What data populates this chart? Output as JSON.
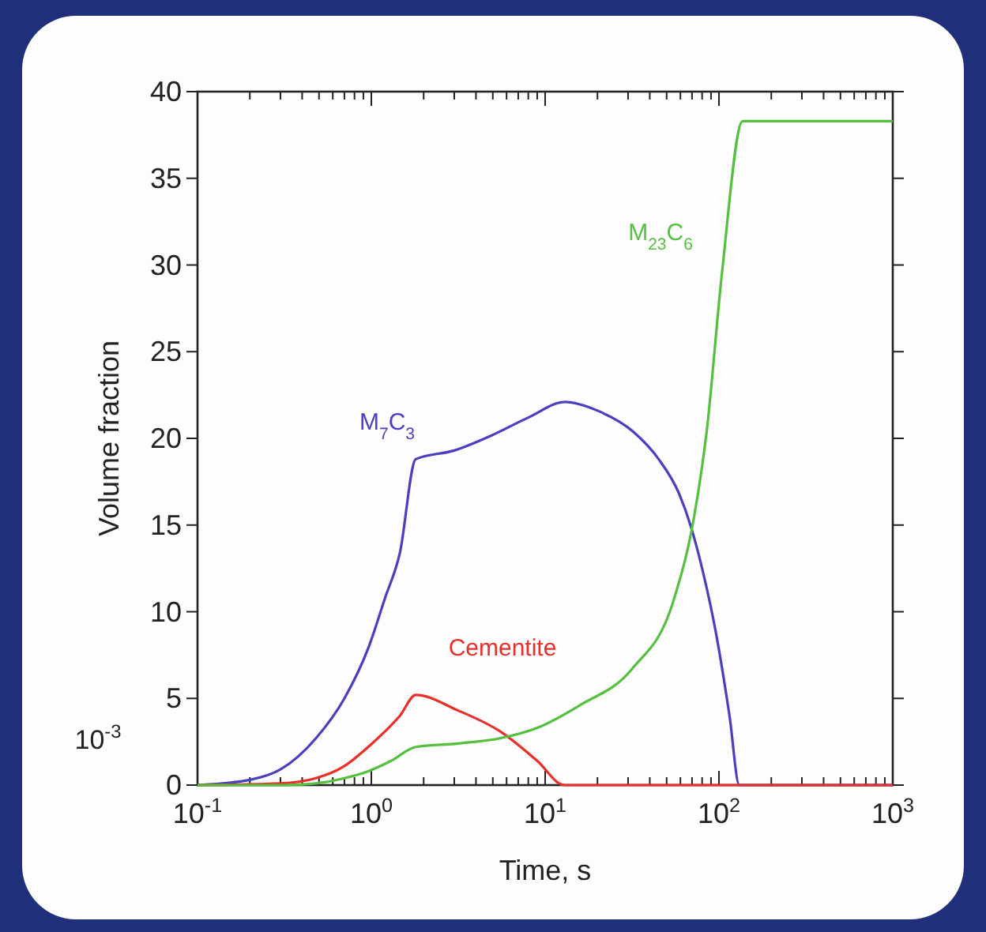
{
  "chart_data": {
    "type": "line",
    "xlabel": "Time, s",
    "ylabel": "Volume fraction",
    "log": "x",
    "xlim": [
      0.1,
      1000
    ],
    "ylim": [
      0,
      40
    ],
    "xticks": [
      {
        "value": 0.1,
        "label": "10$^{-1}$"
      },
      {
        "value": 0.2,
        "label": null
      },
      {
        "value": 0.3,
        "label": null
      },
      {
        "value": 0.4,
        "label": null
      },
      {
        "value": 0.5,
        "label": null
      },
      {
        "value": 0.6,
        "label": null
      },
      {
        "value": 0.7,
        "label": null
      },
      {
        "value": 0.8,
        "label": null
      },
      {
        "value": 0.9,
        "label": null
      },
      {
        "value": 1,
        "label": "10$^{0}$"
      },
      {
        "value": 2,
        "label": null
      },
      {
        "value": 3,
        "label": null
      },
      {
        "value": 4,
        "label": null
      },
      {
        "value": 5,
        "label": null
      },
      {
        "value": 6,
        "label": null
      },
      {
        "value": 7,
        "label": null
      },
      {
        "value": 8,
        "label": null
      },
      {
        "value": 9,
        "label": null
      },
      {
        "value": 10,
        "label": "10$^{1}$"
      },
      {
        "value": 20,
        "label": null
      },
      {
        "value": 30,
        "label": null
      },
      {
        "value": 40,
        "label": null
      },
      {
        "value": 50,
        "label": null
      },
      {
        "value": 60,
        "label": null
      },
      {
        "value": 70,
        "label": null
      },
      {
        "value": 80,
        "label": null
      },
      {
        "value": 90,
        "label": null
      },
      {
        "value": 100,
        "label": "10$^{2}$"
      },
      {
        "value": 200,
        "label": null
      },
      {
        "value": 300,
        "label": null
      },
      {
        "value": 400,
        "label": null
      },
      {
        "value": 500,
        "label": null
      },
      {
        "value": 600,
        "label": null
      },
      {
        "value": 700,
        "label": null
      },
      {
        "value": 800,
        "label": null
      },
      {
        "value": 900,
        "label": null
      },
      {
        "value": 1000,
        "label": "10$^{3}$"
      }
    ],
    "yticks": [
      0,
      5,
      10,
      15,
      20,
      25,
      30,
      35,
      40
    ],
    "grid": false,
    "legend": false,
    "marker": "none",
    "line_style": "solid",
    "annotations": [
      "10$^{-3}$"
    ],
    "series": [
      {
        "name": "M$_{7}$C$_{3}$",
        "color": "#4a3fbf",
        "x": [
          0.1,
          0.2,
          0.3,
          0.48,
          0.7,
          0.96,
          1.2,
          1.46,
          1.8,
          3,
          5,
          8,
          13,
          20,
          32,
          45,
          59,
          69,
          80,
          96,
          115,
          131,
          1000
        ],
        "values": [
          0,
          0.3,
          0.9,
          2.7,
          5,
          7.9,
          10.8,
          13.4,
          18.8,
          19.3,
          20.2,
          21.2,
          22.1,
          21.6,
          20.4,
          18.8,
          16.8,
          14.9,
          12.5,
          8.8,
          4,
          0,
          0
        ]
      },
      {
        "name": "Cementite",
        "color": "#e8302a",
        "x": [
          0.1,
          0.3,
          0.48,
          0.7,
          0.96,
          1.2,
          1.46,
          1.8,
          3.16,
          5.5,
          9,
          12.9,
          1000
        ],
        "values": [
          0,
          0.1,
          0.4,
          1.1,
          2.2,
          3.1,
          4,
          5.2,
          4.3,
          3.1,
          1.4,
          0,
          0
        ]
      },
      {
        "name": "M$_{23}$C$_{6}$",
        "color": "#55c040",
        "x": [
          0.1,
          0.3,
          0.48,
          0.7,
          0.96,
          1.3,
          1.8,
          3.16,
          5.5,
          9,
          15.8,
          31.6,
          55,
          72,
          85,
          104,
          137,
          1000
        ],
        "values": [
          0,
          0,
          0.1,
          0.4,
          0.8,
          1.4,
          2.2,
          2.4,
          2.7,
          3.3,
          4.6,
          6.7,
          10.7,
          15.5,
          20.4,
          29.5,
          38.3,
          38.3
        ]
      }
    ]
  }
}
